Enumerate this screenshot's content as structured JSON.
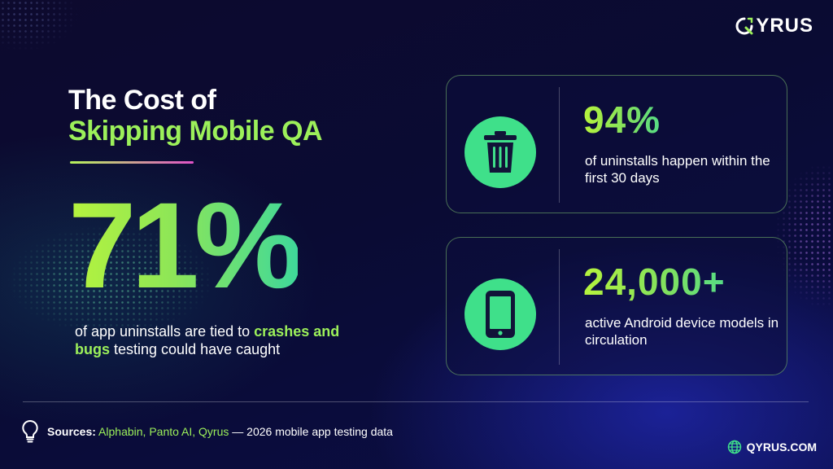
{
  "brand": {
    "logo_text": "YRUS",
    "logo_icon": "qyrus-q-icon",
    "website": "QYRUS.COM"
  },
  "headline": {
    "line1": "The Cost of",
    "line2": "Skipping Mobile QA"
  },
  "hero_stat": {
    "value": "71%",
    "desc_pre": "of app uninstalls are tied to",
    "desc_highlight": "crashes and bugs",
    "desc_post": "testing could have caught"
  },
  "cards": [
    {
      "icon": "trash-icon",
      "value": "94%",
      "description": "of uninstalls happen within the first 30 days"
    },
    {
      "icon": "smartphone-icon",
      "value": "24,000+",
      "description": "active Android device models in circulation"
    }
  ],
  "footer": {
    "icon": "lightbulb-icon",
    "sources_label": "Sources:",
    "sources_names": "Alphabin, Panto AI, Qyrus",
    "sources_suffix": "— 2026 mobile app testing data",
    "globe_icon": "globe-icon"
  },
  "colors": {
    "accent_green": "#9cf05a",
    "icon_circle": "#3fe08a",
    "background": "#0b0c38"
  }
}
